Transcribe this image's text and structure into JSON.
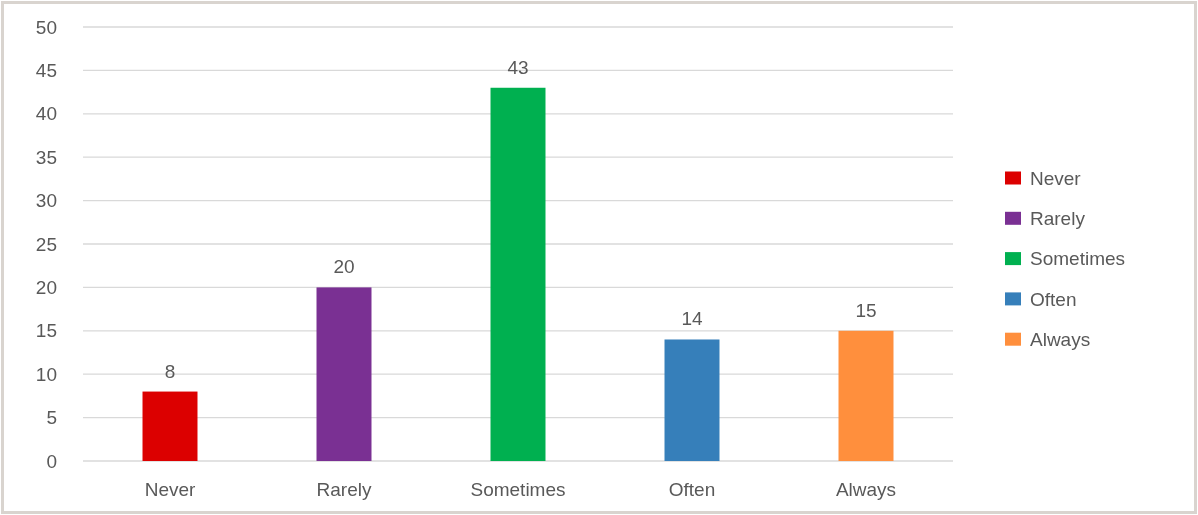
{
  "chart_data": {
    "type": "bar",
    "stacked": true,
    "categories": [
      "Never",
      "Rarely",
      "Sometimes",
      "Often",
      "Always"
    ],
    "series": [
      {
        "name": "Never",
        "color": "#dc0000",
        "values": [
          8,
          null,
          null,
          null,
          null
        ]
      },
      {
        "name": "Rarely",
        "color": "#7a3093",
        "values": [
          null,
          20,
          null,
          null,
          null
        ]
      },
      {
        "name": "Sometimes",
        "color": "#00b050",
        "values": [
          null,
          null,
          43,
          null,
          null
        ]
      },
      {
        "name": "Often",
        "color": "#367fba",
        "values": [
          null,
          null,
          null,
          14,
          null
        ]
      },
      {
        "name": "Always",
        "color": "#ff8f3d",
        "values": [
          null,
          null,
          null,
          null,
          15
        ]
      }
    ],
    "ylim": [
      0,
      50
    ],
    "yticks": [
      0,
      5,
      10,
      15,
      20,
      25,
      30,
      35,
      40,
      45,
      50
    ],
    "grid": "y",
    "legend": "right",
    "data_labels": true
  }
}
